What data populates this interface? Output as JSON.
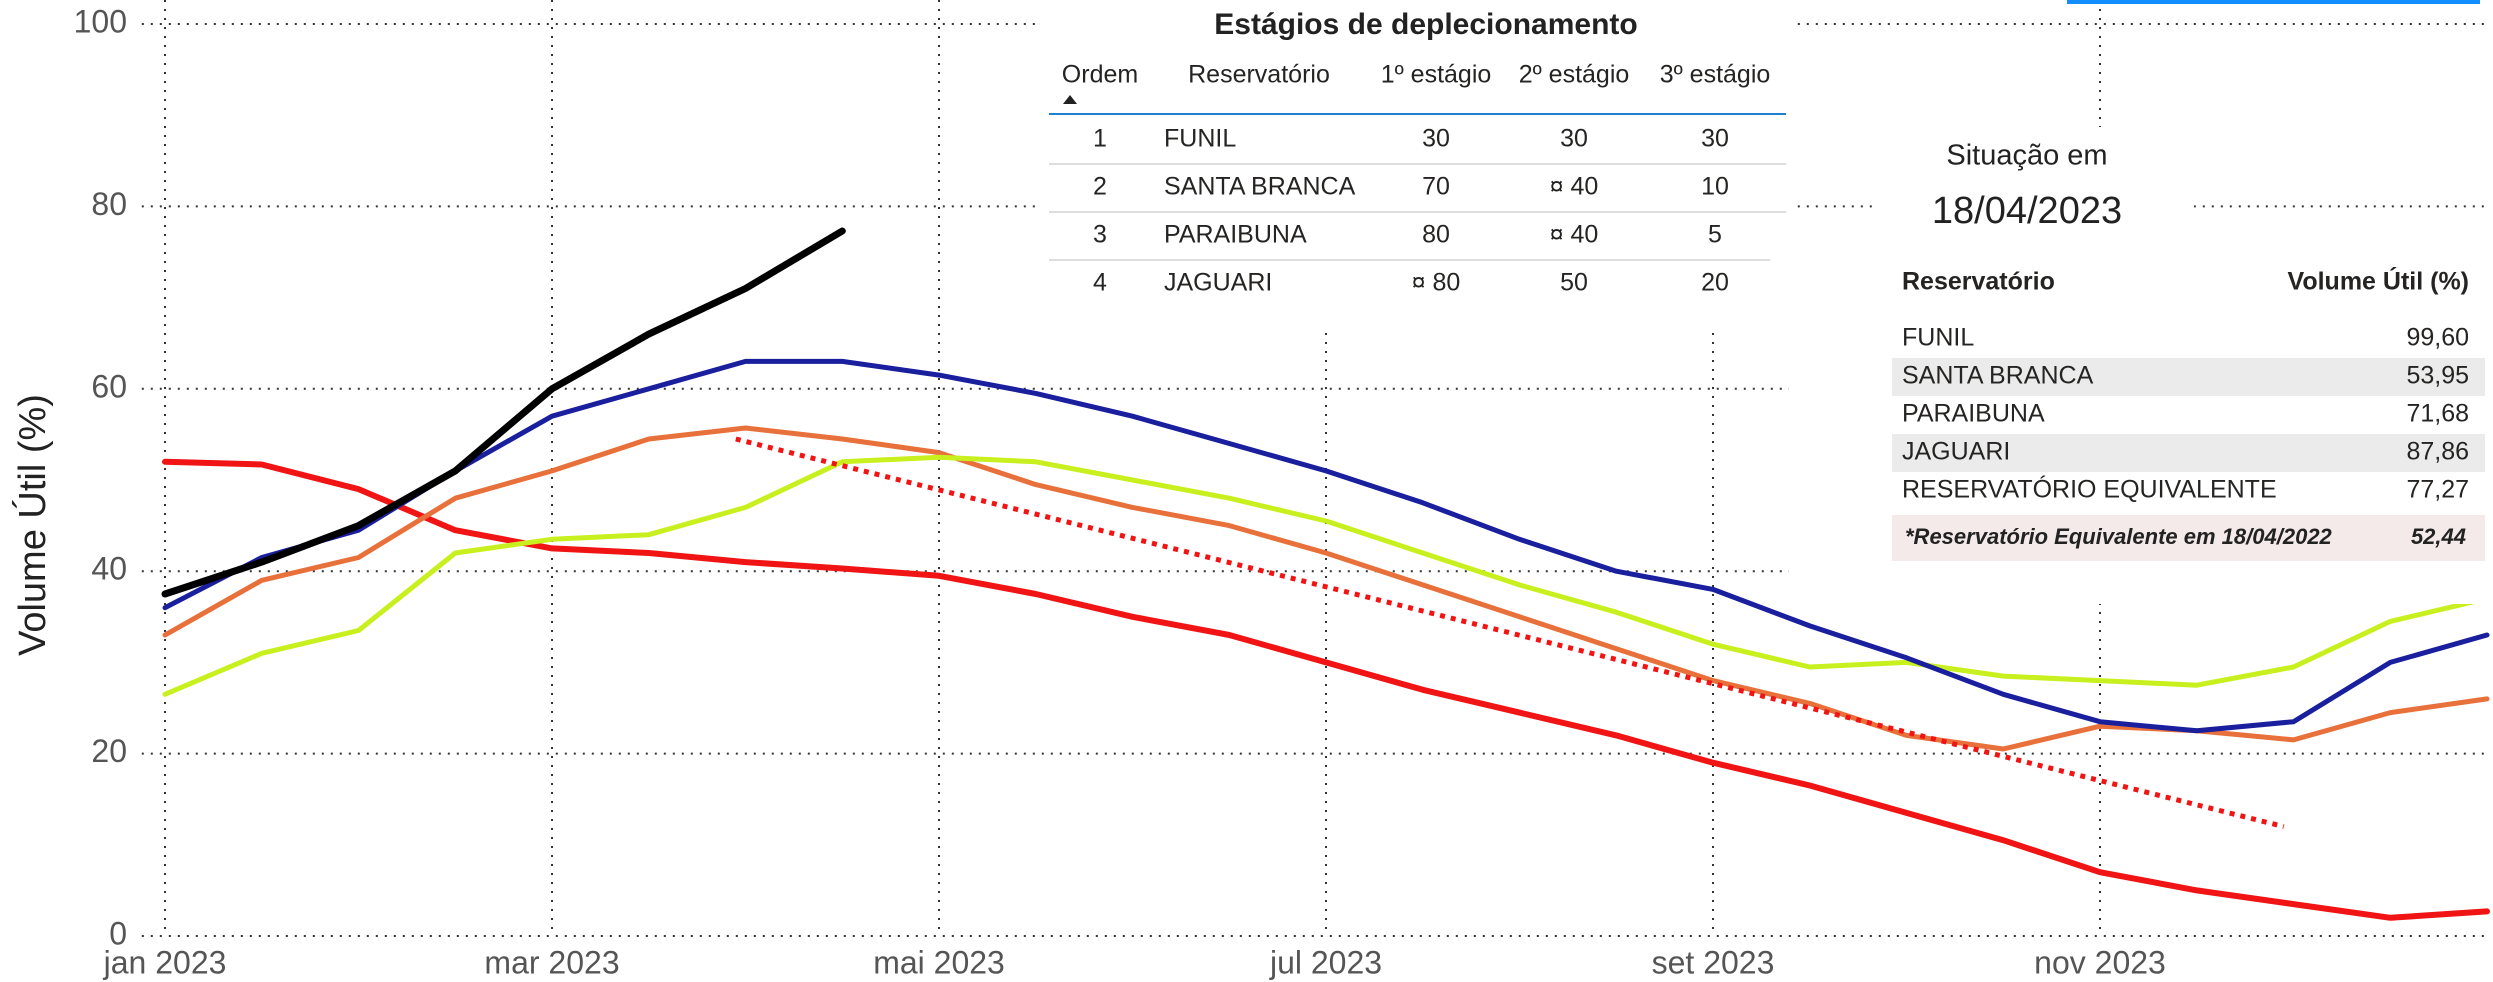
{
  "chart_data": {
    "type": "line",
    "ylabel": "Volume Útil (%)",
    "x": [
      0,
      0.5,
      1,
      1.5,
      2,
      2.5,
      3,
      3.5,
      4,
      4.5,
      5,
      5.5,
      6,
      6.5,
      7,
      7.5,
      8,
      8.5,
      9,
      9.5,
      10,
      10.5,
      11,
      11.5,
      12
    ],
    "xlim": [
      -0.12,
      12
    ],
    "ylim": [
      0,
      100
    ],
    "xticks": [
      {
        "value": 0,
        "label": "jan 2023"
      },
      {
        "value": 2,
        "label": "mar 2023"
      },
      {
        "value": 4,
        "label": "mai 2023"
      },
      {
        "value": 6,
        "label": "jul 2023"
      },
      {
        "value": 8,
        "label": "set 2023"
      },
      {
        "value": 10,
        "label": "nov 2023"
      }
    ],
    "yticks": [
      0,
      20,
      40,
      60,
      80,
      100
    ],
    "grid": true,
    "series": [
      {
        "color": "#f01414",
        "width": 6,
        "values": [
          52,
          51.7,
          49,
          44.5,
          42.5,
          42,
          41,
          40.3,
          39.5,
          37.5,
          35,
          33,
          30,
          27,
          24.5,
          22,
          19,
          16.5,
          13.5,
          10.5,
          7,
          5,
          3.5,
          2,
          2.7
        ]
      },
      {
        "color": "#e8703a",
        "width": 5,
        "values": [
          33,
          39,
          41.5,
          48,
          51,
          54.5,
          55.7,
          54.5,
          53,
          49.5,
          47,
          45,
          42,
          38.5,
          35,
          31.5,
          28,
          25.5,
          22,
          20.5,
          23,
          22.5,
          21.5,
          24.5,
          26
        ]
      },
      {
        "color": "#c8f01e",
        "width": 5,
        "values": [
          26.5,
          31,
          33.5,
          42,
          43.5,
          44,
          47,
          52,
          52.5,
          52,
          50,
          48,
          45.5,
          42,
          38.5,
          35.5,
          32,
          29.5,
          30,
          28.5,
          28,
          27.5,
          29.5,
          34.5,
          37
        ]
      },
      {
        "color": "#1a1f9e",
        "width": 5,
        "values": [
          36,
          41.5,
          44.5,
          51,
          57,
          60,
          63,
          63,
          61.5,
          59.5,
          57,
          54,
          51,
          47.5,
          43.5,
          40,
          38,
          34,
          30.5,
          26.5,
          23.5,
          22.5,
          23.5,
          30,
          33
        ]
      },
      {
        "color": "#000000",
        "width": 7,
        "values": [
          37.5,
          41,
          45,
          51,
          60,
          66,
          71,
          77.3,
          null,
          null,
          null,
          null,
          null,
          null,
          null,
          null,
          null,
          null,
          null,
          null,
          null,
          null,
          null,
          null,
          null
        ]
      }
    ],
    "trend": {
      "color": "#f01414",
      "style": "dotted",
      "x": [
        2.95,
        10.95
      ],
      "values": [
        54.5,
        12
      ]
    }
  },
  "depletion_table": {
    "title": "Estágios de deplecionamento",
    "columns": [
      "Ordem",
      "Reservatório",
      "1º estágio",
      "2º estágio",
      "3º estágio"
    ],
    "rows": [
      [
        "1",
        "FUNIL",
        "30",
        "30",
        "30"
      ],
      [
        "2",
        "SANTA BRANCA",
        "70",
        "¤ 40",
        "10"
      ],
      [
        "3",
        "PARAIBUNA",
        "80",
        "¤ 40",
        "5"
      ],
      [
        "4",
        "JAGUARI",
        "¤ 80",
        "50",
        "20"
      ]
    ]
  },
  "situation": {
    "title": "Situação em",
    "date": "18/04/2023",
    "columns": [
      "Reservatório",
      "Volume Útil (%)"
    ],
    "rows": [
      [
        "FUNIL",
        "99,60"
      ],
      [
        "SANTA BRANCA",
        "53,95"
      ],
      [
        "PARAIBUNA",
        "71,68"
      ],
      [
        "JAGUARI",
        "87,86"
      ],
      [
        "RESERVATÓRIO EQUIVALENTE",
        "77,27"
      ]
    ],
    "footnote": [
      "*Reservatório Equivalente em 18/04/2022",
      "52,44"
    ]
  }
}
